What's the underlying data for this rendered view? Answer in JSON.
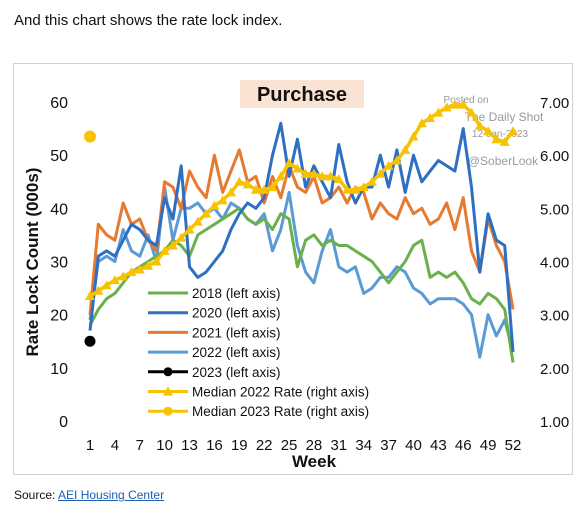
{
  "intro_text": "And this chart shows the rate lock index.",
  "source": {
    "prefix": "Source: ",
    "link_text": "AEI Housing Center"
  },
  "watermark": {
    "line1": "Posted on",
    "line2": "The Daily Shot",
    "line3": "12-Jan-2023",
    "line4": "@SoberLook"
  },
  "chart_data": {
    "type": "line",
    "title": "Purchase",
    "xlabel": "Week",
    "ylabel": "Rate Lock Count (000s)",
    "xlim": [
      1,
      52
    ],
    "ylim": [
      0,
      60
    ],
    "y2lim": [
      1.0,
      7.0
    ],
    "x_ticks": [
      "1",
      "4",
      "7",
      "10",
      "13",
      "16",
      "19",
      "22",
      "25",
      "28",
      "31",
      "34",
      "37",
      "40",
      "43",
      "46",
      "49",
      "52"
    ],
    "y_ticks": [
      "0",
      "10",
      "20",
      "30",
      "40",
      "50",
      "60"
    ],
    "y2_ticks": [
      "1.00",
      "2.00",
      "3.00",
      "4.00",
      "5.00",
      "6.00",
      "7.00"
    ],
    "legend_position": "lower-left",
    "colors": {
      "s2018": "#6ab04c",
      "s2020": "#2e6fc4",
      "s2021": "#e57a30",
      "s2022": "#5b9bd5",
      "s2023": "#000000",
      "rate2022": "#f7c200",
      "rate2023": "#f7c200",
      "title_bg": "#fbe3d4"
    },
    "series": [
      {
        "name": "2018 (left axis)",
        "key": "s2018",
        "axis": "left",
        "x": [
          1,
          2,
          3,
          4,
          5,
          6,
          7,
          8,
          9,
          10,
          11,
          12,
          13,
          14,
          15,
          16,
          17,
          18,
          19,
          20,
          21,
          22,
          23,
          24,
          25,
          26,
          27,
          28,
          29,
          30,
          31,
          32,
          33,
          34,
          35,
          36,
          37,
          38,
          39,
          40,
          41,
          42,
          43,
          44,
          45,
          46,
          47,
          48,
          49,
          50,
          51,
          52
        ],
        "values": [
          18,
          21,
          23,
          24,
          26,
          28,
          29,
          30,
          31,
          32,
          34,
          33,
          31,
          35,
          36,
          37,
          38,
          39,
          40,
          38,
          37,
          38,
          36,
          39,
          38,
          29,
          34,
          35,
          33,
          34,
          33,
          33,
          32,
          31,
          30,
          28,
          26,
          28,
          30,
          33,
          34,
          27,
          28,
          27,
          28,
          26,
          23,
          22,
          24,
          23,
          21,
          11
        ]
      },
      {
        "name": "2020 (left axis)",
        "key": "s2020",
        "axis": "left",
        "x": [
          1,
          2,
          3,
          4,
          5,
          6,
          7,
          8,
          9,
          10,
          11,
          12,
          13,
          14,
          15,
          16,
          17,
          18,
          19,
          20,
          21,
          22,
          23,
          24,
          25,
          26,
          27,
          28,
          29,
          30,
          31,
          32,
          33,
          34,
          35,
          36,
          37,
          38,
          39,
          40,
          41,
          42,
          43,
          44,
          45,
          46,
          47,
          48,
          49,
          50,
          51,
          52
        ],
        "values": [
          17,
          31,
          32,
          31,
          34,
          37,
          36,
          34,
          33,
          42,
          38,
          48,
          29,
          27,
          28,
          30,
          32,
          36,
          39,
          41,
          40,
          42,
          50,
          56,
          46,
          53,
          44,
          48,
          45,
          42,
          52,
          45,
          41,
          44,
          44,
          50,
          44,
          51,
          43,
          50,
          45,
          47,
          49,
          48,
          47,
          55,
          44,
          28,
          39,
          34,
          33,
          13
        ]
      },
      {
        "name": "2021 (left axis)",
        "key": "s2021",
        "axis": "left",
        "x": [
          1,
          2,
          3,
          4,
          5,
          6,
          7,
          8,
          9,
          10,
          11,
          12,
          13,
          14,
          15,
          16,
          17,
          18,
          19,
          20,
          21,
          22,
          23,
          24,
          25,
          26,
          27,
          28,
          29,
          30,
          31,
          32,
          33,
          34,
          35,
          36,
          37,
          38,
          39,
          40,
          41,
          42,
          43,
          44,
          45,
          46,
          47,
          48,
          49,
          50,
          51,
          52
        ],
        "values": [
          20,
          37,
          35,
          34,
          41,
          37,
          38,
          34,
          32,
          45,
          44,
          40,
          47,
          44,
          42,
          50,
          43,
          47,
          51,
          45,
          46,
          41,
          46,
          42,
          48,
          44,
          43,
          46,
          41,
          42,
          44,
          41,
          44,
          43,
          38,
          41,
          39,
          38,
          42,
          39,
          40,
          37,
          38,
          41,
          36,
          42,
          32,
          28,
          38,
          33,
          30,
          21
        ]
      },
      {
        "name": "2022 (left axis)",
        "key": "s2022",
        "axis": "left",
        "x": [
          1,
          2,
          3,
          4,
          5,
          6,
          7,
          8,
          9,
          10,
          11,
          12,
          13,
          14,
          15,
          16,
          17,
          18,
          19,
          20,
          21,
          22,
          23,
          24,
          25,
          26,
          27,
          28,
          29,
          30,
          31,
          32,
          33,
          34,
          35,
          36,
          37,
          38,
          39,
          40,
          41,
          42,
          43,
          44,
          45,
          46,
          47,
          48,
          49,
          50,
          51,
          52
        ],
        "values": [
          19,
          30,
          31,
          30,
          36,
          32,
          31,
          35,
          30,
          44,
          34,
          40,
          40,
          41,
          39,
          40,
          38,
          41,
          40,
          38,
          37,
          39,
          32,
          36,
          43,
          33,
          28,
          26,
          32,
          36,
          29,
          28,
          29,
          24,
          25,
          27,
          27,
          29,
          28,
          25,
          24,
          22,
          23,
          23,
          23,
          22,
          20,
          12,
          20,
          16,
          19,
          13
        ]
      },
      {
        "name": "2023 (left axis)",
        "key": "s2023",
        "axis": "left",
        "x": [
          1
        ],
        "values": [
          15
        ]
      },
      {
        "name": "Median 2022 Rate (right axis)",
        "key": "rate2022",
        "axis": "right",
        "x": [
          1,
          2,
          3,
          4,
          5,
          6,
          7,
          8,
          9,
          10,
          11,
          12,
          13,
          14,
          15,
          16,
          17,
          18,
          19,
          20,
          21,
          22,
          23,
          24,
          25,
          26,
          27,
          28,
          29,
          30,
          31,
          32,
          33,
          34,
          35,
          36,
          37,
          38,
          39,
          40,
          41,
          42,
          43,
          44,
          45,
          46,
          47,
          48,
          49,
          50,
          51,
          52
        ],
        "values": [
          3.35,
          3.45,
          3.55,
          3.65,
          3.72,
          3.8,
          3.85,
          3.92,
          4.0,
          4.2,
          4.3,
          4.45,
          4.6,
          4.75,
          4.9,
          5.05,
          5.15,
          5.3,
          5.5,
          5.45,
          5.35,
          5.35,
          5.4,
          5.6,
          5.85,
          5.75,
          5.65,
          5.65,
          5.6,
          5.6,
          5.55,
          5.35,
          5.35,
          5.4,
          5.5,
          5.65,
          5.8,
          5.9,
          6.1,
          6.35,
          6.6,
          6.7,
          6.8,
          6.9,
          6.95,
          6.95,
          6.8,
          6.55,
          6.45,
          6.3,
          6.25,
          6.45
        ]
      },
      {
        "name": "Median 2023 Rate (right axis)",
        "key": "rate2023",
        "axis": "right",
        "x": [
          1
        ],
        "values": [
          6.35
        ]
      }
    ]
  }
}
